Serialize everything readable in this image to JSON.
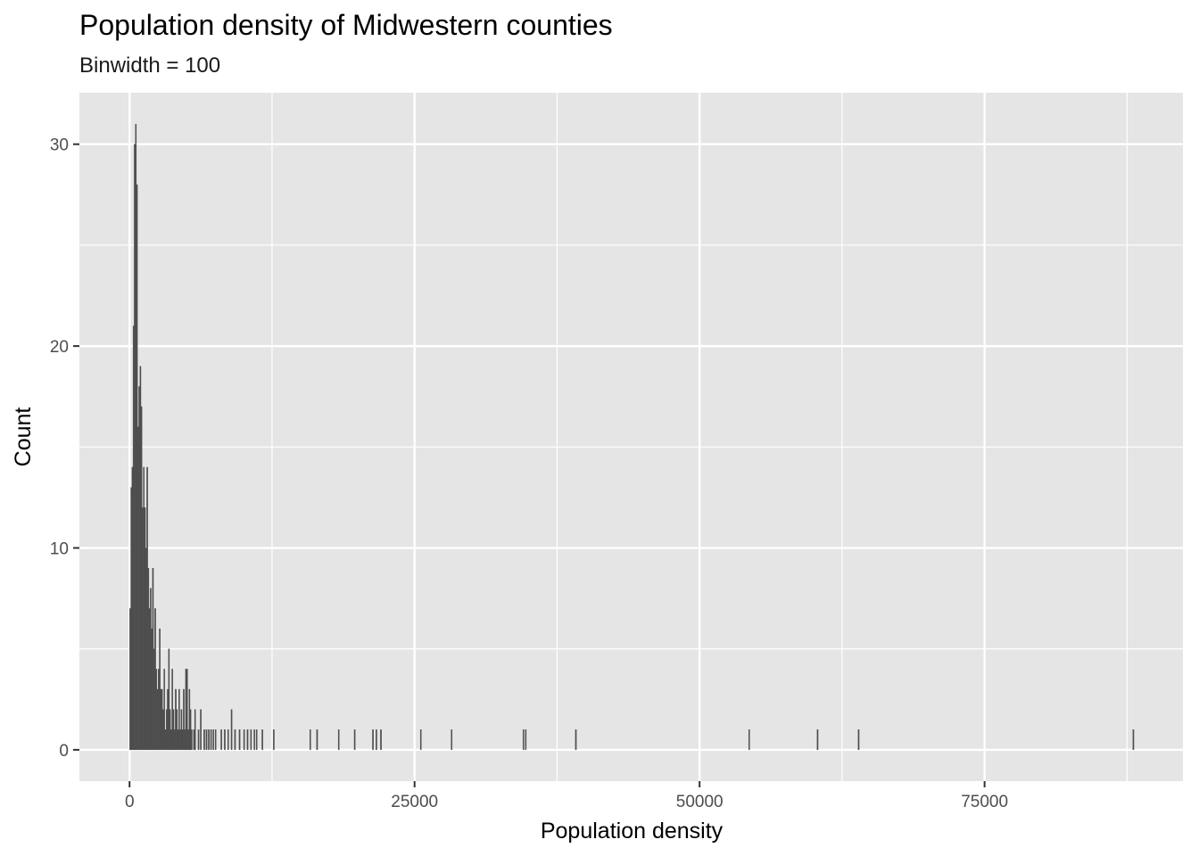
{
  "chart_data": {
    "type": "bar",
    "title": "Population density of Midwestern counties",
    "subtitle": "Binwidth = 100",
    "xlabel": "Population density",
    "ylabel": "Count",
    "binwidth": 100,
    "xlim": [
      -4400,
      92400
    ],
    "ylim": [
      -1.55,
      32.55
    ],
    "x_ticks": [
      0,
      25000,
      50000,
      75000
    ],
    "x_tick_labels": [
      "0",
      "25000",
      "50000",
      "75000"
    ],
    "y_ticks": [
      0,
      10,
      20,
      30
    ],
    "y_tick_labels": [
      "0",
      "10",
      "20",
      "30"
    ],
    "grid": true,
    "background": "#e5e5e5",
    "grid_color": "#ffffff",
    "bar_color": "#4d4d4d",
    "bins": [
      {
        "x": 50,
        "count": 7
      },
      {
        "x": 150,
        "count": 13
      },
      {
        "x": 250,
        "count": 14
      },
      {
        "x": 350,
        "count": 21
      },
      {
        "x": 450,
        "count": 30
      },
      {
        "x": 550,
        "count": 31
      },
      {
        "x": 650,
        "count": 28
      },
      {
        "x": 750,
        "count": 16
      },
      {
        "x": 850,
        "count": 18
      },
      {
        "x": 950,
        "count": 19
      },
      {
        "x": 1050,
        "count": 17
      },
      {
        "x": 1150,
        "count": 12
      },
      {
        "x": 1250,
        "count": 14
      },
      {
        "x": 1350,
        "count": 12
      },
      {
        "x": 1450,
        "count": 10
      },
      {
        "x": 1550,
        "count": 14
      },
      {
        "x": 1650,
        "count": 9
      },
      {
        "x": 1750,
        "count": 7
      },
      {
        "x": 1850,
        "count": 8
      },
      {
        "x": 1950,
        "count": 6
      },
      {
        "x": 2050,
        "count": 9
      },
      {
        "x": 2150,
        "count": 5
      },
      {
        "x": 2250,
        "count": 7
      },
      {
        "x": 2350,
        "count": 4
      },
      {
        "x": 2450,
        "count": 3
      },
      {
        "x": 2550,
        "count": 4
      },
      {
        "x": 2650,
        "count": 6
      },
      {
        "x": 2750,
        "count": 3
      },
      {
        "x": 2850,
        "count": 3
      },
      {
        "x": 2950,
        "count": 2
      },
      {
        "x": 3050,
        "count": 4
      },
      {
        "x": 3150,
        "count": 1
      },
      {
        "x": 3250,
        "count": 2
      },
      {
        "x": 3350,
        "count": 3
      },
      {
        "x": 3450,
        "count": 5
      },
      {
        "x": 3550,
        "count": 2
      },
      {
        "x": 3650,
        "count": 1
      },
      {
        "x": 3750,
        "count": 4
      },
      {
        "x": 3850,
        "count": 2
      },
      {
        "x": 3950,
        "count": 1
      },
      {
        "x": 4050,
        "count": 3
      },
      {
        "x": 4150,
        "count": 2
      },
      {
        "x": 4250,
        "count": 1
      },
      {
        "x": 4350,
        "count": 3
      },
      {
        "x": 4450,
        "count": 1
      },
      {
        "x": 4550,
        "count": 2
      },
      {
        "x": 4650,
        "count": 1
      },
      {
        "x": 4750,
        "count": 3
      },
      {
        "x": 4850,
        "count": 1
      },
      {
        "x": 4950,
        "count": 4
      },
      {
        "x": 5050,
        "count": 4
      },
      {
        "x": 5150,
        "count": 1
      },
      {
        "x": 5250,
        "count": 3
      },
      {
        "x": 5350,
        "count": 2
      },
      {
        "x": 5450,
        "count": 1
      },
      {
        "x": 5650,
        "count": 1
      },
      {
        "x": 5750,
        "count": 2
      },
      {
        "x": 6050,
        "count": 1
      },
      {
        "x": 6250,
        "count": 2
      },
      {
        "x": 6550,
        "count": 1
      },
      {
        "x": 6750,
        "count": 1
      },
      {
        "x": 6950,
        "count": 1
      },
      {
        "x": 7150,
        "count": 1
      },
      {
        "x": 7350,
        "count": 1
      },
      {
        "x": 7550,
        "count": 1
      },
      {
        "x": 8050,
        "count": 1
      },
      {
        "x": 8350,
        "count": 1
      },
      {
        "x": 8650,
        "count": 1
      },
      {
        "x": 8950,
        "count": 2
      },
      {
        "x": 9250,
        "count": 1
      },
      {
        "x": 9650,
        "count": 1
      },
      {
        "x": 10050,
        "count": 1
      },
      {
        "x": 10350,
        "count": 1
      },
      {
        "x": 10650,
        "count": 1
      },
      {
        "x": 10950,
        "count": 1
      },
      {
        "x": 11150,
        "count": 1
      },
      {
        "x": 11650,
        "count": 1
      },
      {
        "x": 12650,
        "count": 1
      },
      {
        "x": 15850,
        "count": 1
      },
      {
        "x": 16450,
        "count": 1
      },
      {
        "x": 18350,
        "count": 1
      },
      {
        "x": 19750,
        "count": 1
      },
      {
        "x": 21350,
        "count": 1
      },
      {
        "x": 21650,
        "count": 1
      },
      {
        "x": 22050,
        "count": 1
      },
      {
        "x": 25550,
        "count": 1
      },
      {
        "x": 28250,
        "count": 1
      },
      {
        "x": 34550,
        "count": 1
      },
      {
        "x": 34750,
        "count": 1
      },
      {
        "x": 39150,
        "count": 1
      },
      {
        "x": 54350,
        "count": 1
      },
      {
        "x": 60350,
        "count": 1
      },
      {
        "x": 63950,
        "count": 1
      },
      {
        "x": 88050,
        "count": 1
      }
    ]
  }
}
